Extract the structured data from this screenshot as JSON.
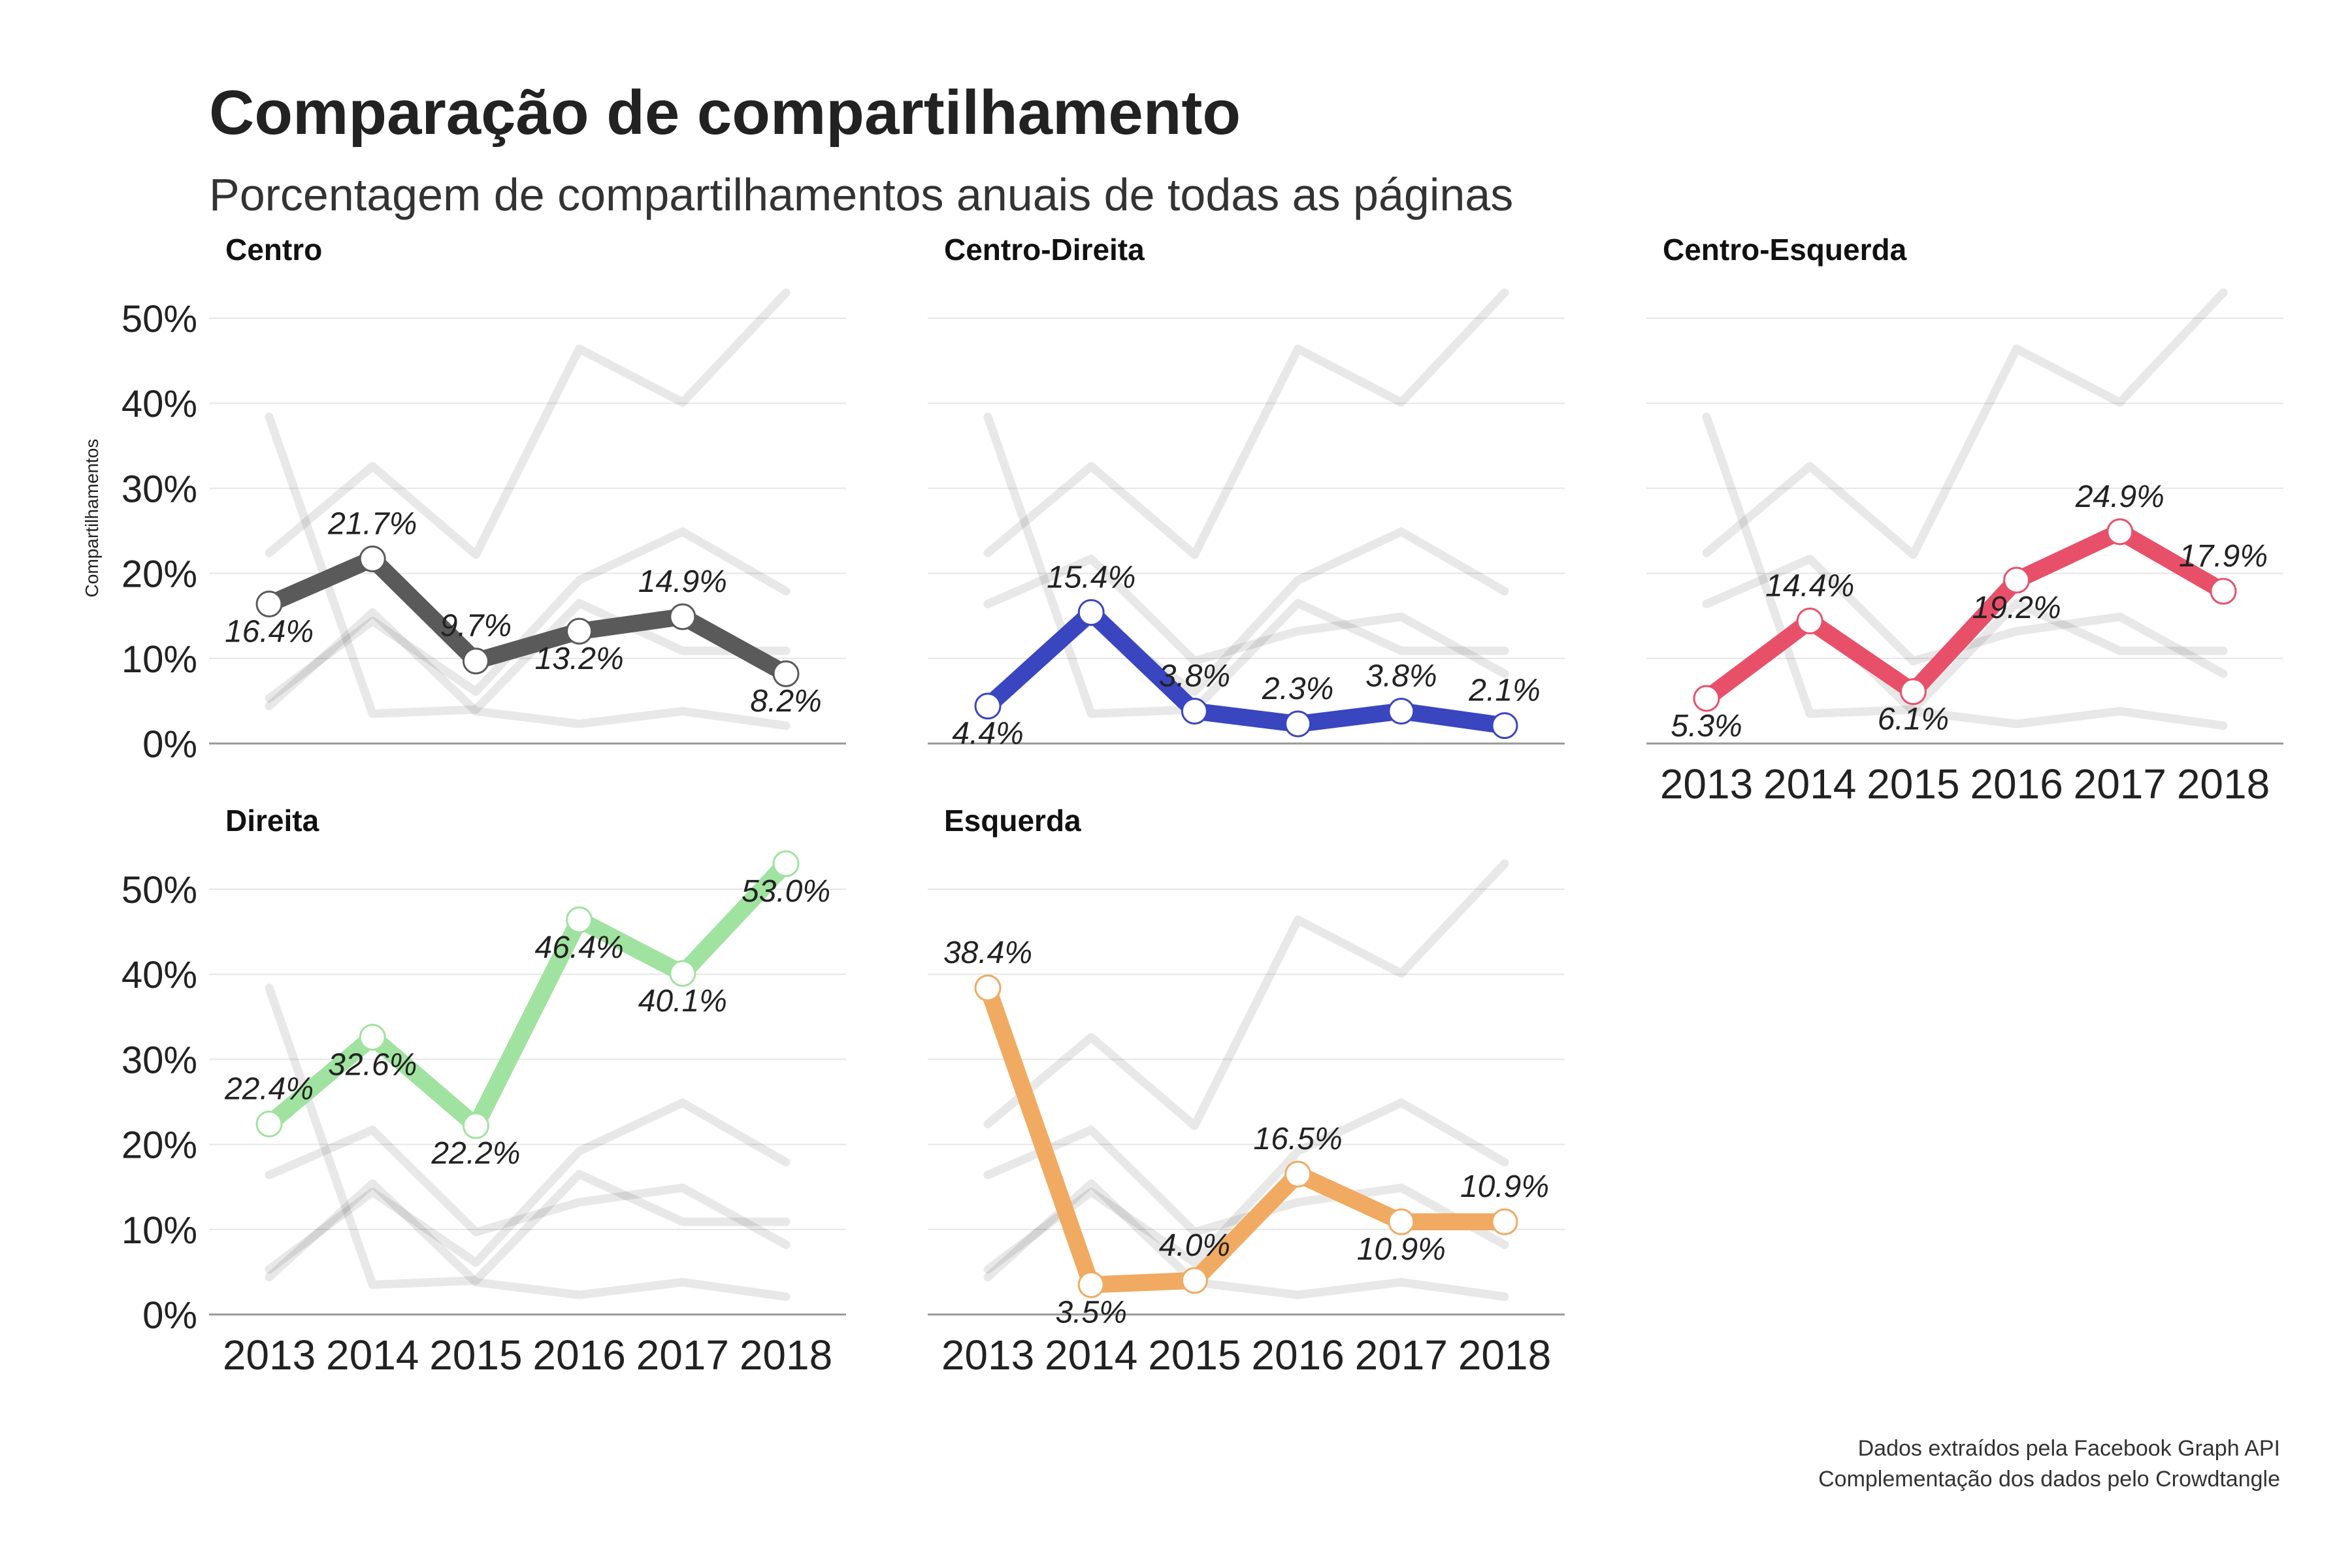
{
  "title": "Comparação de compartilhamento",
  "subtitle": "Porcentagem de compartilhamentos anuais de todas as páginas",
  "ylabel": "Compartilhamentos",
  "caption": [
    "Dados extraídos pela Facebook Graph API",
    "Complementação dos dados pelo Crowdtangle"
  ],
  "chart_data": {
    "type": "line",
    "x": [
      "2013",
      "2014",
      "2015",
      "2016",
      "2017",
      "2018"
    ],
    "ylim": [
      0,
      53
    ],
    "yticks": [
      "0%",
      "10%",
      "20%",
      "30%",
      "40%",
      "50%"
    ],
    "ytick_values": [
      0,
      10,
      20,
      30,
      40,
      50
    ],
    "grid": true,
    "series": [
      {
        "name": "Centro",
        "color": "#5a5a5a",
        "values": [
          16.4,
          21.7,
          9.7,
          13.2,
          14.9,
          8.2
        ],
        "labels": [
          "16.4%",
          "21.7%",
          "9.7%",
          "13.2%",
          "14.9%",
          "8.2%"
        ]
      },
      {
        "name": "Centro-Direita",
        "color": "#3a45c0",
        "values": [
          4.4,
          15.4,
          3.8,
          2.3,
          3.8,
          2.1
        ],
        "labels": [
          "4.4%",
          "15.4%",
          "3.8%",
          "2.3%",
          "3.8%",
          "2.1%"
        ]
      },
      {
        "name": "Centro-Esquerda",
        "color": "#e8506a",
        "values": [
          5.3,
          14.4,
          6.1,
          19.2,
          24.9,
          17.9
        ],
        "labels": [
          "5.3%",
          "14.4%",
          "6.1%",
          "19.2%",
          "24.9%",
          "17.9%"
        ]
      },
      {
        "name": "Direita",
        "color": "#a0e2a0",
        "values": [
          22.4,
          32.6,
          22.2,
          46.4,
          40.1,
          53.0
        ],
        "labels": [
          "22.4%",
          "32.6%",
          "22.2%",
          "46.4%",
          "40.1%",
          "53.0%"
        ]
      },
      {
        "name": "Esquerda",
        "color": "#f0aa62",
        "values": [
          38.4,
          3.5,
          4.0,
          16.5,
          10.9,
          10.9
        ],
        "labels": [
          "38.4%",
          "3.5%",
          "4.0%",
          "16.5%",
          "10.9%",
          "10.9%"
        ]
      }
    ]
  }
}
